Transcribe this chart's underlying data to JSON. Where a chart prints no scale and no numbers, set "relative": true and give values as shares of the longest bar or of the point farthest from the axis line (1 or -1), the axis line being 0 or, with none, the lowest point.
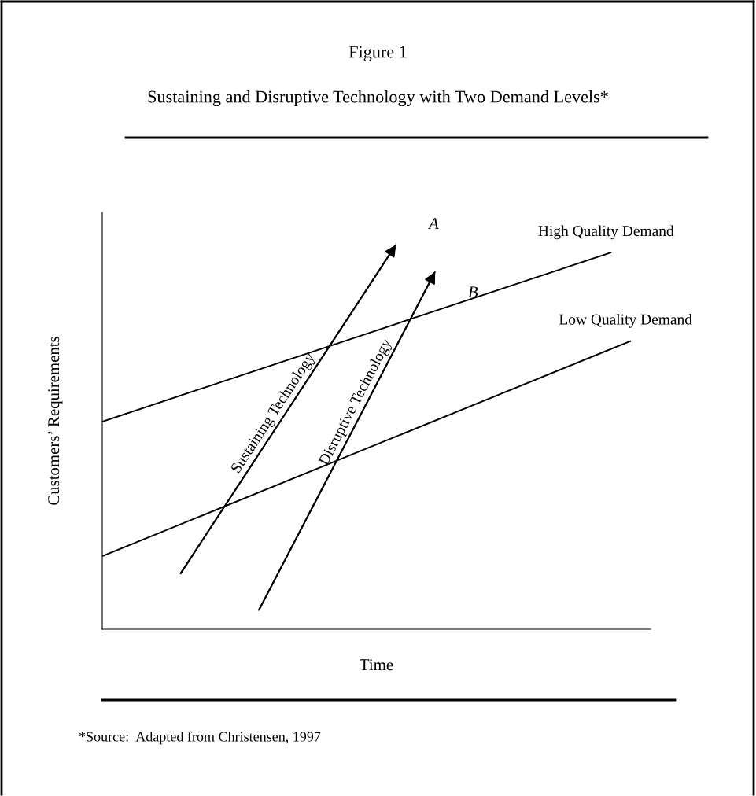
{
  "chart_data": {
    "type": "line",
    "relative": true,
    "title": "Figure 1",
    "subtitle": "Sustaining and Disruptive Technology with Two Demand Levels*",
    "xlabel": "Time",
    "ylabel": "Customers’ Requirements",
    "categories": [
      null,
      null,
      null,
      null,
      null,
      null,
      null,
      null,
      null,
      null,
      null,
      null,
      null,
      null,
      null,
      null,
      null,
      null,
      null,
      null,
      null,
      null,
      null,
      null,
      null,
      null,
      null,
      null,
      null
    ],
    "series": [
      {
        "name": "High Quality Demand",
        "color": "#000000",
        "values": [
          0.54,
          null,
          null,
          null,
          null,
          null,
          null,
          null,
          null,
          null,
          null,
          null,
          null,
          null,
          null,
          null,
          null,
          null,
          null,
          null,
          null,
          null,
          null,
          null,
          null,
          null,
          0.98,
          null,
          null
        ]
      },
      {
        "name": "Low Quality Demand",
        "color": "#000000",
        "values": [
          0.19,
          null,
          null,
          null,
          null,
          null,
          null,
          null,
          null,
          null,
          null,
          null,
          null,
          null,
          null,
          null,
          null,
          null,
          null,
          null,
          null,
          null,
          null,
          null,
          null,
          null,
          null,
          0.75,
          null
        ]
      },
      {
        "name": "Sustaining Technology",
        "color": "#000000",
        "values": [
          null,
          null,
          null,
          null,
          0.145,
          null,
          null,
          null,
          null,
          null,
          null,
          null,
          null,
          null,
          null,
          1,
          null,
          null,
          null,
          null,
          null,
          null,
          null,
          null,
          null,
          null,
          null,
          null,
          null
        ]
      },
      {
        "name": "Disruptive Technology",
        "color": "#000000",
        "values": [
          null,
          null,
          null,
          null,
          null,
          null,
          null,
          null,
          0.05,
          null,
          null,
          null,
          null,
          null,
          null,
          null,
          null,
          0.93,
          null,
          null,
          null,
          null,
          null,
          null,
          null,
          null,
          null,
          null,
          null
        ]
      }
    ],
    "annotations": [
      "A",
      "B",
      "*Source:  Adapted from Christensen, 1997"
    ],
    "grid": false
  }
}
